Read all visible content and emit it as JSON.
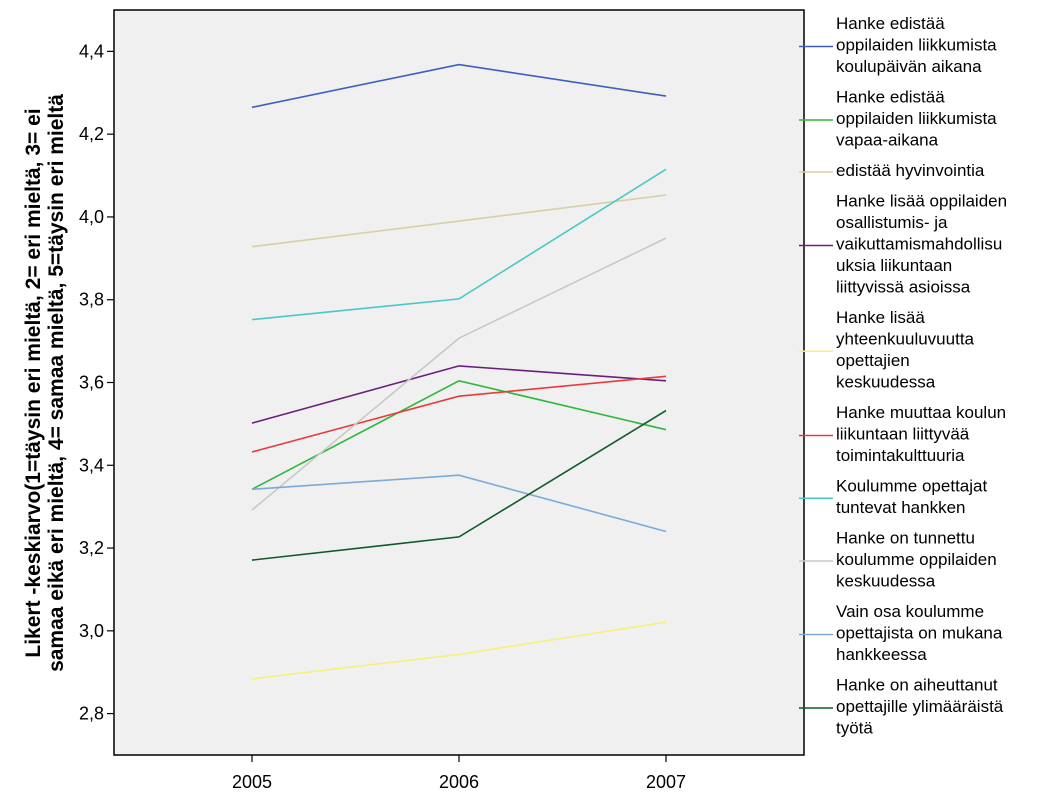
{
  "chart_data": {
    "type": "line",
    "x": [
      "2005",
      "2006",
      "2007"
    ],
    "ylabel_lines": [
      "Likert -keskiarvo(1=täysin eri mieltä, 2= eri mieltä, 3= ei",
      "samaa eikä eri mieltä, 4= samaa mieltä, 5=täysin eri mieltä"
    ],
    "ylim": [
      2.7,
      4.5
    ],
    "yticks": [
      "2,8",
      "3,0",
      "3,2",
      "3,4",
      "3,6",
      "3,8",
      "4,0",
      "4,2",
      "4,4"
    ],
    "ytick_values": [
      2.8,
      3.0,
      3.2,
      3.4,
      3.6,
      3.8,
      4.0,
      4.2,
      4.4
    ],
    "grid": false,
    "legend_position": "right",
    "plot_background": "#f0f0f0",
    "series": [
      {
        "name": "Hanke edistää oppilaiden liikkumista koulupäivän aikana",
        "legend_lines": [
          "Hanke edistää",
          "oppilaiden liikkumista",
          "koulupäivän aikana"
        ],
        "color": "#3a5fbf",
        "values": [
          4.265,
          4.368,
          4.292
        ]
      },
      {
        "name": "Hanke edistää oppilaiden liikkumista vapaa-aikana",
        "legend_lines": [
          "Hanke edistää",
          "oppilaiden liikkumista",
          "vapaa-aikana"
        ],
        "color": "#2fb83c",
        "values": [
          3.342,
          3.604,
          3.486
        ]
      },
      {
        "name": "edistää hyvinvointia",
        "legend_lines": [
          "edistää hyvinvointia"
        ],
        "color": "#d8cfa0",
        "values": [
          3.928,
          3.99,
          4.053
        ]
      },
      {
        "name": "Hanke lisää oppilaiden osallistumis- ja vaikuttamismahdollisuuksia liikuntaan liittyvissä asioissa",
        "legend_lines": [
          "Hanke lisää oppilaiden",
          "osallistumis- ja",
          "vaikuttamismahdollisu",
          "uksia liikuntaan",
          "liittyvissä asioissa"
        ],
        "color": "#6b1f7c",
        "values": [
          3.502,
          3.64,
          3.604
        ]
      },
      {
        "name": "Hanke lisää yhteenkuuluvuutta opettajien keskuudessa",
        "legend_lines": [
          "Hanke lisää",
          "yhteenkuuluvuutta",
          "opettajien",
          "keskuudessa"
        ],
        "color": "#f5f07a",
        "values": [
          2.884,
          2.943,
          3.021
        ]
      },
      {
        "name": "Hanke muuttaa koulun liikuntaan liittyvää toimintakulttuuria",
        "legend_lines": [
          "Hanke muuttaa koulun",
          "liikuntaan liittyvää",
          "toimintakulttuuria"
        ],
        "color": "#e83a3a",
        "values": [
          3.432,
          3.567,
          3.615
        ]
      },
      {
        "name": "Koulumme opettajat tuntevat hankken",
        "legend_lines": [
          "Koulumme opettajat",
          "tuntevat hankken"
        ],
        "color": "#4ac8c8",
        "values": [
          3.752,
          3.802,
          4.115
        ]
      },
      {
        "name": "Hanke on tunnettu koulumme oppilaiden keskuudessa",
        "legend_lines": [
          "Hanke on tunnettu",
          "koulumme oppilaiden",
          "keskuudessa"
        ],
        "color": "#c8c8c8",
        "values": [
          3.292,
          3.707,
          3.949
        ]
      },
      {
        "name": "Vain osa koulumme opettajista on mukana hankkeessa",
        "legend_lines": [
          "Vain osa koulumme",
          "opettajista on mukana",
          "hankkeessa"
        ],
        "color": "#7aaad8",
        "values": [
          3.342,
          3.376,
          3.24
        ]
      },
      {
        "name": "Hanke on aiheuttanut opettajille ylimääräistä työtä",
        "legend_lines": [
          "Hanke on aiheuttanut",
          "opettajille ylimääräistä",
          "työtä"
        ],
        "color": "#0f5a2a",
        "values": [
          3.171,
          3.227,
          3.532
        ]
      }
    ]
  }
}
